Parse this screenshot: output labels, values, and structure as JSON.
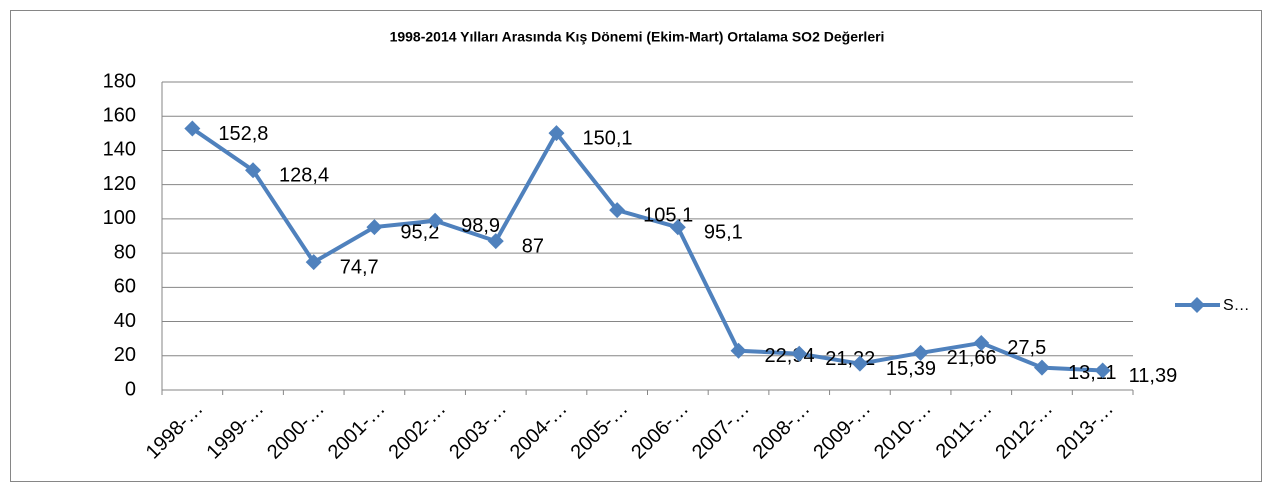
{
  "chart_data": {
    "type": "line",
    "title": "1998-2014 Yılları Arasında Kış Dönemi (Ekim-Mart) Ortalama SO2 Değerleri",
    "categories": [
      "1998-…",
      "1999-…",
      "2000-…",
      "2001-…",
      "2002-…",
      "2003-…",
      "2004-…",
      "2005-…",
      "2006-…",
      "2007-…",
      "2008-…",
      "2009-…",
      "2010-…",
      "2011-…",
      "2012-…",
      "2013-…"
    ],
    "series": [
      {
        "name": "S…",
        "color": "#4f81bd",
        "values": [
          152.8,
          128.4,
          74.7,
          95.2,
          98.9,
          87,
          150.1,
          105.1,
          95.1,
          22.94,
          21.22,
          15.39,
          21.66,
          27.5,
          13.11,
          11.39
        ],
        "value_labels": [
          "152,8",
          "128,4",
          "74,7",
          "95,2",
          "98,9",
          "87",
          "150,1",
          "105,1",
          "95,1",
          "22,94",
          "21,22",
          "15,39",
          "21,66",
          "27,5",
          "13,11",
          "11,39"
        ]
      }
    ],
    "ylim": [
      0,
      180
    ],
    "yticks": [
      0,
      20,
      40,
      60,
      80,
      100,
      120,
      140,
      160,
      180
    ],
    "grid": true,
    "legend": "right"
  }
}
